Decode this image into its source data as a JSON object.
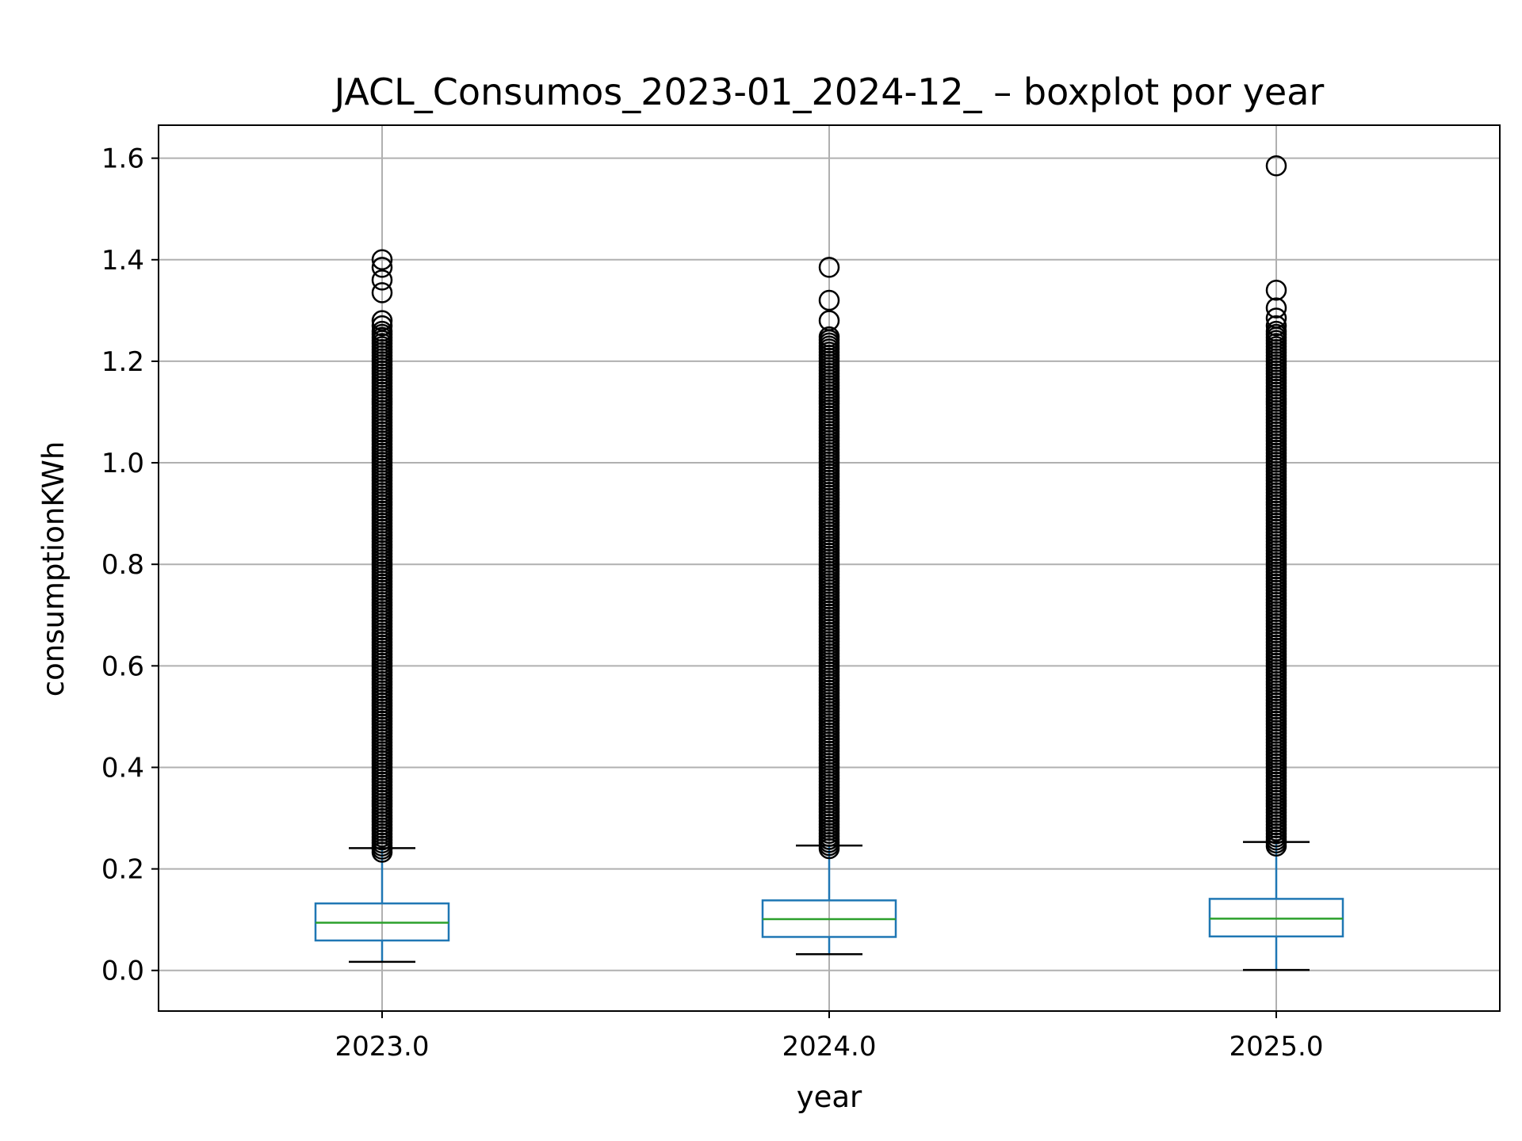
{
  "chart_data": {
    "type": "boxplot",
    "title": "JACL_Consumos_2023-01_2024-12_ – boxplot por year",
    "xlabel": "year",
    "ylabel": "consumptionKWh",
    "ylim": [
      -0.08,
      1.665
    ],
    "yticks": [
      "0.0",
      "0.2",
      "0.4",
      "0.6",
      "0.8",
      "1.0",
      "1.2",
      "1.4",
      "1.6"
    ],
    "grid": true,
    "colors": {
      "box": "#1f77b4",
      "median": "#2ca02c",
      "whisker": "#1f77b4",
      "cap": "#000000",
      "flier": "#000000",
      "grid": "#b0b0b0"
    },
    "categories": [
      "2023.0",
      "2024.0",
      "2025.0"
    ],
    "boxes": [
      {
        "label": "2023.0",
        "whisker_low": 0.017,
        "q1": 0.059,
        "median": 0.094,
        "q3": 0.132,
        "whisker_high": 0.241,
        "fliers_dense_range": [
          0.233,
          1.26
        ],
        "fliers_top": [
          1.27,
          1.28,
          1.335,
          1.36,
          1.385,
          1.4
        ]
      },
      {
        "label": "2024.0",
        "whisker_low": 0.032,
        "q1": 0.066,
        "median": 0.101,
        "q3": 0.138,
        "whisker_high": 0.246,
        "fliers_dense_range": [
          0.24,
          1.25
        ],
        "fliers_top": [
          1.28,
          1.32,
          1.385
        ]
      },
      {
        "label": "2025.0",
        "whisker_low": 0.001,
        "q1": 0.067,
        "median": 0.102,
        "q3": 0.141,
        "whisker_high": 0.253,
        "fliers_dense_range": [
          0.245,
          1.26
        ],
        "fliers_top": [
          1.27,
          1.285,
          1.305,
          1.34,
          1.585
        ]
      }
    ]
  }
}
